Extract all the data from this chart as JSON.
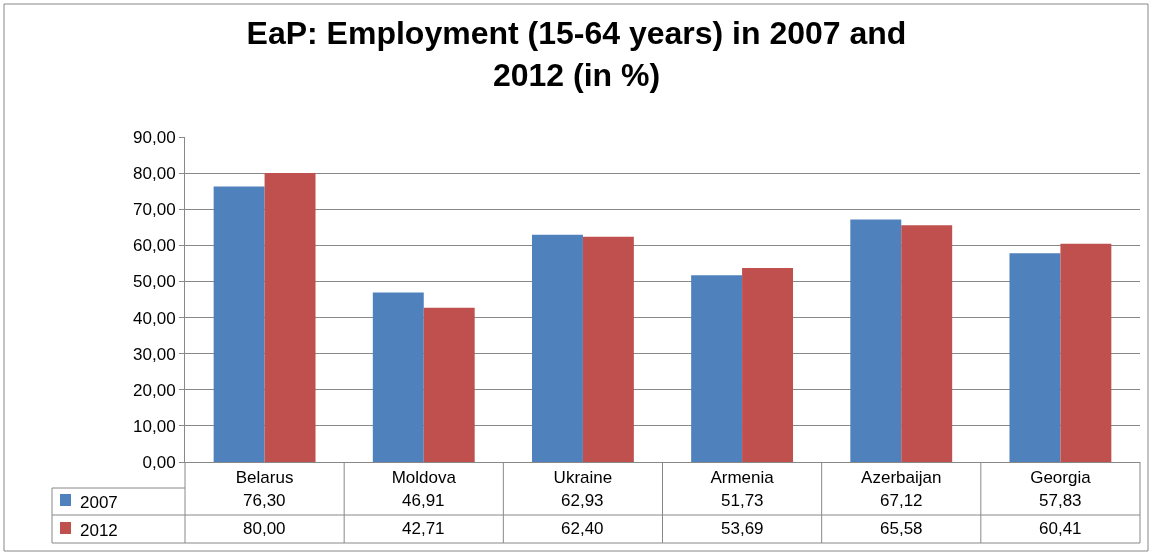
{
  "chart_data": {
    "type": "bar",
    "title": "EaP: Employment (15-64 years) in 2007 and 2012 (in %)",
    "categories": [
      "Belarus",
      "Moldova",
      "Ukraine",
      "Armenia",
      "Azerbaijan",
      "Georgia"
    ],
    "series": [
      {
        "name": "2007",
        "color": "#4f81bd",
        "values": [
          76.3,
          46.91,
          62.93,
          51.73,
          67.12,
          57.83
        ],
        "value_labels": [
          "76,30",
          "46,91",
          "62,93",
          "51,73",
          "67,12",
          "57,83"
        ]
      },
      {
        "name": "2012",
        "color": "#c0504d",
        "values": [
          80.0,
          42.71,
          62.4,
          53.69,
          65.58,
          60.41
        ],
        "value_labels": [
          "80,00",
          "42,71",
          "62,40",
          "53,69",
          "65,58",
          "60,41"
        ]
      }
    ],
    "ylim": [
      0,
      90
    ],
    "yticks": [
      {
        "value": 0,
        "label": "0,00"
      },
      {
        "value": 10,
        "label": "10,00"
      },
      {
        "value": 20,
        "label": "20,00"
      },
      {
        "value": 30,
        "label": "30,00"
      },
      {
        "value": 40,
        "label": "40,00"
      },
      {
        "value": 50,
        "label": "50,00"
      },
      {
        "value": 60,
        "label": "60,00"
      },
      {
        "value": 70,
        "label": "70,00"
      },
      {
        "value": 80,
        "label": "80,00"
      },
      {
        "value": 90,
        "label": "90,00"
      }
    ],
    "grid": "y",
    "legend": "bottom left"
  }
}
